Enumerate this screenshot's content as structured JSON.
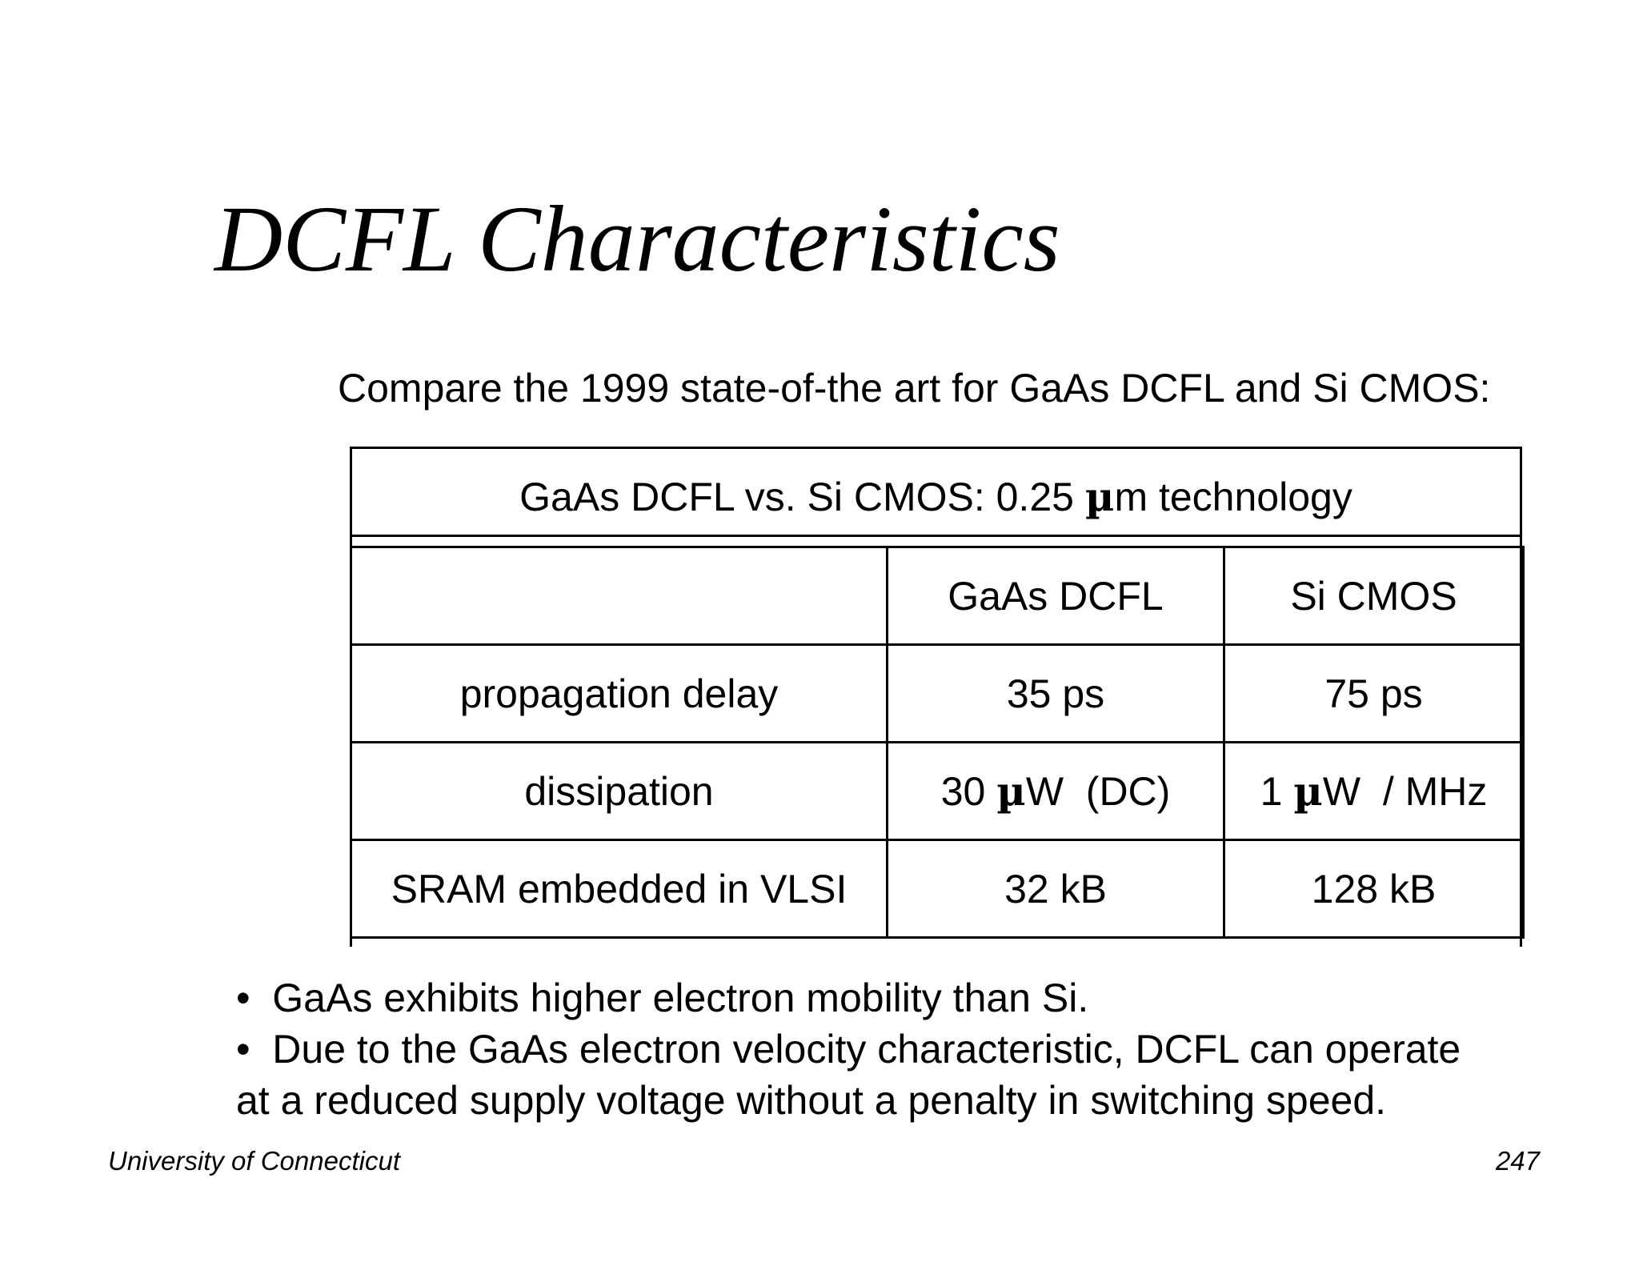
{
  "slide": {
    "title": "DCFL Characteristics",
    "subtitle": "Compare the 1999 state-of-the art for GaAs DCFL and Si CMOS:"
  },
  "table": {
    "caption_pre": "GaAs DCFL vs. Si CMOS: 0.25 ",
    "caption_mu": "µ",
    "caption_post": "m technology",
    "headers": [
      "",
      "GaAs DCFL",
      "Si CMOS"
    ],
    "rows": [
      {
        "label": "propagation delay",
        "gaas": "35 ps",
        "si": "75 ps"
      },
      {
        "label": "dissipation",
        "gaas_pre": "30 ",
        "gaas_mu": "µ",
        "gaas_post": "W  (DC)",
        "si_pre": "1 ",
        "si_mu": "µ",
        "si_post": "W  / MHz"
      },
      {
        "label": "SRAM embedded in VLSI",
        "gaas": "32 kB",
        "si": "128 kB"
      }
    ]
  },
  "bullets": {
    "line1": "•  GaAs exhibits higher electron mobility than Si.",
    "line2": "•  Due to the GaAs electron velocity characteristic, DCFL can operate",
    "line3": "at a reduced supply voltage without a penalty in switching speed."
  },
  "footer": {
    "institution": "University of Connecticut",
    "page_number": "247"
  }
}
